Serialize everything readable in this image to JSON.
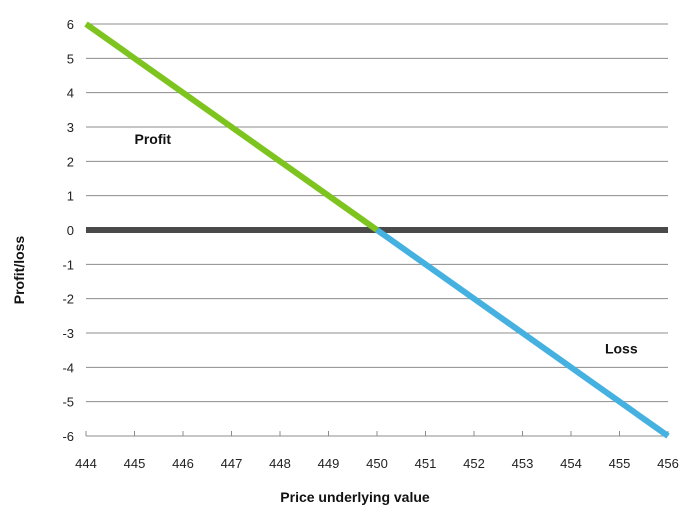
{
  "chart_data": {
    "type": "line",
    "xlabel": "Price underlying value",
    "ylabel": "Profit/loss",
    "x_ticks": [
      444,
      445,
      446,
      447,
      448,
      449,
      450,
      451,
      452,
      453,
      454,
      455,
      456
    ],
    "y_ticks": [
      6,
      5,
      4,
      3,
      2,
      1,
      0,
      -1,
      -2,
      -3,
      -4,
      -5,
      -6
    ],
    "xlim": [
      444,
      456
    ],
    "ylim": [
      -6,
      6
    ],
    "grid": true,
    "zero_line_emphasized": true,
    "series": [
      {
        "x": [
          444,
          450
        ],
        "y": [
          6,
          0
        ],
        "color": "#7dc41f"
      },
      {
        "x": [
          450,
          456
        ],
        "y": [
          0,
          -6
        ],
        "color": "#45b1e0"
      }
    ],
    "annotations": [
      {
        "text": "Profit",
        "x": 445,
        "y": 2.5
      },
      {
        "text": "Loss",
        "x": 454.7,
        "y": -3.6
      }
    ],
    "colors": {
      "grid": "#8c8c8c",
      "zero_line": "#4a4a4a",
      "text": "#111111"
    }
  }
}
